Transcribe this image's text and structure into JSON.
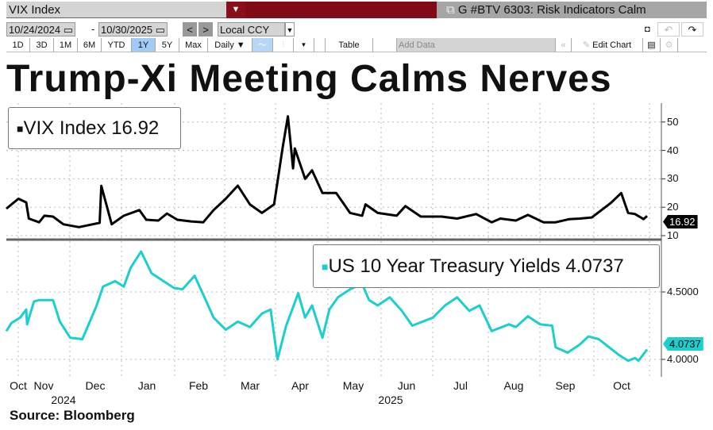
{
  "toolbar": {
    "security": "VIX Index",
    "page_title": "G #BTV 6303: Risk Indicators Calm",
    "start_date": "10/24/2024",
    "end_date": "10/30/2025",
    "currency": "Local CCY",
    "periods": [
      "1D",
      "3D",
      "1M",
      "6M",
      "YTD",
      "1Y",
      "5Y",
      "Max"
    ],
    "active_period": "1Y",
    "frequency": "Daily ▼",
    "table": "Table",
    "add_data_placeholder": "Add Data",
    "edit_chart": "Edit Chart",
    "prev": "<",
    "next": ">"
  },
  "headline": "Trump-Xi Meeting Calms Nerves",
  "source": "Source: Bloomberg",
  "chart_data": {
    "type": "line",
    "x_unit": "days since 2024-10-24",
    "x_range": [
      "10/24/2024",
      "10/30/2025"
    ],
    "month_labels": [
      "Oct",
      "Nov",
      "Dec",
      "Jan",
      "Feb",
      "Mar",
      "Apr",
      "May",
      "Jun",
      "Jul",
      "Aug",
      "Sep",
      "Oct"
    ],
    "year_labels": [
      "2024",
      "2025"
    ],
    "panels": [
      {
        "name": "VIX Index",
        "last": "16.92",
        "color": "#000000",
        "ylim": [
          7,
          55
        ],
        "yticks": [
          "50",
          "40",
          "30",
          "20",
          "10"
        ],
        "ytick_values": [
          50,
          40,
          30,
          20,
          10
        ],
        "points": [
          [
            0,
            19.5
          ],
          [
            7,
            23
          ],
          [
            11.5,
            21.7
          ],
          [
            13,
            16
          ],
          [
            19,
            14.7
          ],
          [
            22,
            17
          ],
          [
            27,
            16.7
          ],
          [
            33,
            14
          ],
          [
            42,
            13
          ],
          [
            50,
            14
          ],
          [
            54,
            14.5
          ],
          [
            55,
            27.5
          ],
          [
            61,
            14
          ],
          [
            68,
            17
          ],
          [
            77,
            19
          ],
          [
            81,
            15.6
          ],
          [
            88,
            15.3
          ],
          [
            93,
            17.8
          ],
          [
            99,
            15.6
          ],
          [
            107,
            15
          ],
          [
            114,
            14.7
          ],
          [
            120,
            19
          ],
          [
            127,
            23
          ],
          [
            134,
            27.6
          ],
          [
            141,
            21
          ],
          [
            148,
            18
          ],
          [
            155,
            21
          ],
          [
            160,
            41
          ],
          [
            163,
            52
          ],
          [
            166,
            33.7
          ],
          [
            167,
            40.7
          ],
          [
            173,
            30
          ],
          [
            177,
            33
          ],
          [
            183,
            25
          ],
          [
            191,
            25
          ],
          [
            199,
            18
          ],
          [
            206,
            17
          ],
          [
            208,
            21
          ],
          [
            215,
            18
          ],
          [
            226,
            17
          ],
          [
            231,
            20.4
          ],
          [
            240,
            16.7
          ],
          [
            252,
            16.7
          ],
          [
            261,
            16
          ],
          [
            272,
            17.6
          ],
          [
            281,
            14.7
          ],
          [
            286,
            16
          ],
          [
            295,
            15.3
          ],
          [
            302,
            17.3
          ],
          [
            311,
            14.7
          ],
          [
            318,
            14.7
          ],
          [
            326,
            15.8
          ],
          [
            332,
            16
          ],
          [
            339,
            16.4
          ],
          [
            350,
            21.5
          ],
          [
            356,
            25
          ],
          [
            360,
            18
          ],
          [
            364,
            17.6
          ],
          [
            369,
            15.8
          ],
          [
            371,
            16.92
          ]
        ]
      },
      {
        "name": "US 10 Year Treasury Yields",
        "last": "4.0737",
        "color": "#1ccfcf",
        "ylim": [
          3.87,
          4.87
        ],
        "yticks": [
          "4.5000",
          "4.0000"
        ],
        "ytick_values": [
          4.5,
          4.0
        ],
        "points": [
          [
            0,
            4.21
          ],
          [
            3,
            4.27
          ],
          [
            8,
            4.31
          ],
          [
            11.5,
            4.37
          ],
          [
            12,
            4.26
          ],
          [
            16,
            4.43
          ],
          [
            19,
            4.44
          ],
          [
            27,
            4.44
          ],
          [
            31,
            4.28
          ],
          [
            37,
            4.16
          ],
          [
            44,
            4.15
          ],
          [
            52,
            4.39
          ],
          [
            56,
            4.54
          ],
          [
            63,
            4.58
          ],
          [
            68,
            4.54
          ],
          [
            72,
            4.68
          ],
          [
            78,
            4.8
          ],
          [
            84,
            4.64
          ],
          [
            91,
            4.58
          ],
          [
            97,
            4.53
          ],
          [
            102,
            4.52
          ],
          [
            109,
            4.62
          ],
          [
            114,
            4.48
          ],
          [
            120,
            4.31
          ],
          [
            127,
            4.22
          ],
          [
            134,
            4.28
          ],
          [
            141,
            4.24
          ],
          [
            148,
            4.34
          ],
          [
            153,
            4.37
          ],
          [
            157,
            4.0
          ],
          [
            162,
            4.25
          ],
          [
            169,
            4.49
          ],
          [
            173,
            4.31
          ],
          [
            177,
            4.4
          ],
          [
            183,
            4.16
          ],
          [
            187,
            4.37
          ],
          [
            192,
            4.46
          ],
          [
            199,
            4.52
          ],
          [
            206,
            4.56
          ],
          [
            210,
            4.44
          ],
          [
            215,
            4.4
          ],
          [
            222,
            4.46
          ],
          [
            229,
            4.36
          ],
          [
            235,
            4.25
          ],
          [
            247,
            4.31
          ],
          [
            254,
            4.4
          ],
          [
            261,
            4.46
          ],
          [
            268,
            4.36
          ],
          [
            274,
            4.4
          ],
          [
            281,
            4.21
          ],
          [
            291,
            4.26
          ],
          [
            295,
            4.24
          ],
          [
            302,
            4.32
          ],
          [
            309,
            4.26
          ],
          [
            316,
            4.25
          ],
          [
            318,
            4.09
          ],
          [
            325,
            4.05
          ],
          [
            332,
            4.11
          ],
          [
            337,
            4.17
          ],
          [
            343,
            4.15
          ],
          [
            350,
            4.08
          ],
          [
            355,
            4.03
          ],
          [
            360,
            3.99
          ],
          [
            364,
            4.01
          ],
          [
            366,
            3.99
          ],
          [
            371,
            4.0737
          ]
        ]
      }
    ]
  }
}
